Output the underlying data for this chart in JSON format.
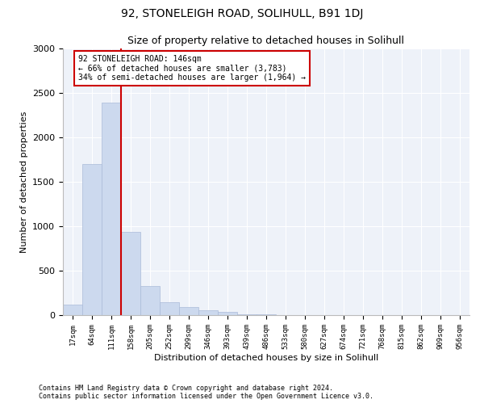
{
  "title": "92, STONELEIGH ROAD, SOLIHULL, B91 1DJ",
  "subtitle": "Size of property relative to detached houses in Solihull",
  "xlabel": "Distribution of detached houses by size in Solihull",
  "ylabel": "Number of detached properties",
  "bar_color": "#ccd9ee",
  "bar_edge_color": "#aabbd8",
  "background_color": "#eef2f9",
  "fig_background": "#ffffff",
  "grid_color": "#ffffff",
  "categories": [
    "17sqm",
    "64sqm",
    "111sqm",
    "158sqm",
    "205sqm",
    "252sqm",
    "299sqm",
    "346sqm",
    "393sqm",
    "439sqm",
    "486sqm",
    "533sqm",
    "580sqm",
    "627sqm",
    "674sqm",
    "721sqm",
    "768sqm",
    "815sqm",
    "862sqm",
    "909sqm",
    "956sqm"
  ],
  "values": [
    120,
    1700,
    2390,
    940,
    330,
    150,
    90,
    55,
    35,
    10,
    5,
    3,
    2,
    0,
    0,
    0,
    0,
    0,
    0,
    0,
    0
  ],
  "ylim": [
    0,
    3000
  ],
  "yticks": [
    0,
    500,
    1000,
    1500,
    2000,
    2500,
    3000
  ],
  "property_line_x": 2.5,
  "annotation_line1": "92 STONELEIGH ROAD: 146sqm",
  "annotation_line2": "← 66% of detached houses are smaller (3,783)",
  "annotation_line3": "34% of semi-detached houses are larger (1,964) →",
  "annotation_box_color": "#cc0000",
  "footer_line1": "Contains HM Land Registry data © Crown copyright and database right 2024.",
  "footer_line2": "Contains public sector information licensed under the Open Government Licence v3.0."
}
